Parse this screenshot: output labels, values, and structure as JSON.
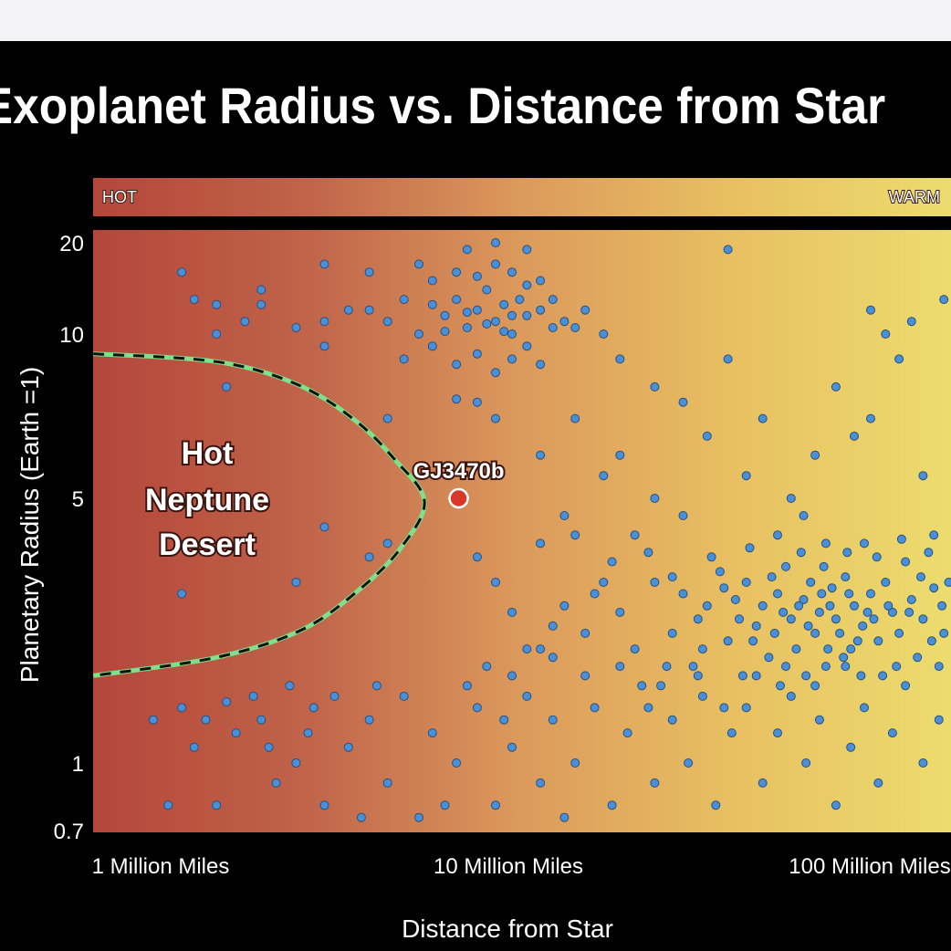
{
  "chart_data": {
    "type": "scatter",
    "title": "Exoplanet Radius vs. Distance from Star",
    "xlabel": "Distance from Star",
    "ylabel": "Planetary Radius (Earth =1)",
    "x_scale": "log",
    "y_scale": "log",
    "x_unit": "million miles",
    "xlim": [
      0.68,
      166
    ],
    "ylim": [
      0.7,
      20
    ],
    "x_ticks": [
      {
        "value": 1,
        "label": "1 Million Miles"
      },
      {
        "value": 10,
        "label": "10 Million Miles"
      },
      {
        "value": 100,
        "label": "100 Million Miles"
      }
    ],
    "y_ticks": [
      {
        "value": 20,
        "label": "20"
      },
      {
        "value": 10,
        "label": "10"
      },
      {
        "value": 5,
        "label": "5"
      },
      {
        "value": 1,
        "label": "1"
      },
      {
        "value": 0.7,
        "label": "0.7"
      }
    ],
    "temperature_band": {
      "left_label": "HOT",
      "right_label": "WARM"
    },
    "colors": {
      "hot": "#b4463a",
      "mid": "#d9955a",
      "warm": "#ecdc6e",
      "point": "#4a90d9",
      "point_stroke": "#24507e",
      "highlight": "#d8382a",
      "desert_line": "#7ee08a"
    },
    "desert_region": {
      "label_lines": [
        "Hot",
        "Neptune",
        "Desert"
      ],
      "boundary": [
        [
          0.68,
          9.2
        ],
        [
          1.5,
          8.9
        ],
        [
          2.5,
          8.1
        ],
        [
          3.6,
          7.0
        ],
        [
          4.7,
          5.9
        ],
        [
          5.7,
          4.9
        ],
        [
          4.9,
          3.7
        ],
        [
          3.8,
          2.9
        ],
        [
          2.6,
          2.25
        ],
        [
          1.5,
          1.9
        ],
        [
          0.68,
          1.7
        ]
      ]
    },
    "highlight": {
      "name": "GJ3470b",
      "x": 7.1,
      "y": 5.0
    },
    "points": [
      [
        4,
        12
      ],
      [
        4.5,
        11
      ],
      [
        5,
        13
      ],
      [
        5.5,
        10
      ],
      [
        6,
        12.5
      ],
      [
        6.5,
        11.5
      ],
      [
        7,
        13
      ],
      [
        7.5,
        10.5
      ],
      [
        8,
        12
      ],
      [
        8.5,
        14
      ],
      [
        9,
        11
      ],
      [
        9.5,
        12.5
      ],
      [
        10,
        10
      ],
      [
        10.5,
        13
      ],
      [
        11,
        11.5
      ],
      [
        12,
        12
      ],
      [
        13,
        10.5
      ],
      [
        14,
        11
      ],
      [
        5,
        9
      ],
      [
        6,
        9.5
      ],
      [
        7,
        8.8
      ],
      [
        8,
        9.2
      ],
      [
        9,
        8.5
      ],
      [
        10,
        9
      ],
      [
        11,
        9.5
      ],
      [
        12,
        8.8
      ],
      [
        6,
        15
      ],
      [
        7,
        16
      ],
      [
        8,
        15.5
      ],
      [
        9,
        17
      ],
      [
        10,
        16
      ],
      [
        11,
        14.5
      ],
      [
        12,
        15
      ],
      [
        3,
        11
      ],
      [
        3.5,
        12
      ],
      [
        2.5,
        10.5
      ],
      [
        3,
        9.5
      ],
      [
        16,
        12
      ],
      [
        18,
        10
      ],
      [
        20,
        9
      ],
      [
        2,
        12.5
      ],
      [
        1.8,
        11
      ],
      [
        4,
        16
      ],
      [
        5.5,
        17
      ],
      [
        7.5,
        19
      ],
      [
        9,
        20
      ],
      [
        11,
        19
      ],
      [
        3,
        17
      ],
      [
        2,
        14
      ],
      [
        1.5,
        10
      ],
      [
        8,
        7.5
      ],
      [
        9,
        7
      ],
      [
        7,
        7.6
      ],
      [
        13,
        13
      ],
      [
        15,
        10.5
      ],
      [
        10,
        11.5
      ],
      [
        9.5,
        10.2
      ],
      [
        8.5,
        10.8
      ],
      [
        7.5,
        11.8
      ],
      [
        6.5,
        10.2
      ],
      [
        15,
        7
      ],
      [
        20,
        6
      ],
      [
        25,
        8
      ],
      [
        30,
        7.5
      ],
      [
        35,
        6.5
      ],
      [
        40,
        9
      ],
      [
        50,
        7
      ],
      [
        60,
        5
      ],
      [
        70,
        6
      ],
      [
        80,
        8
      ],
      [
        90,
        6.5
      ],
      [
        100,
        7
      ],
      [
        120,
        9
      ],
      [
        140,
        5.5
      ],
      [
        25,
        5
      ],
      [
        30,
        4.5
      ],
      [
        45,
        5.5
      ],
      [
        55,
        4
      ],
      [
        65,
        4.5
      ],
      [
        75,
        3.8
      ],
      [
        18,
        5.5
      ],
      [
        22,
        4
      ],
      [
        12,
        6
      ],
      [
        14,
        4.5
      ],
      [
        100,
        12
      ],
      [
        110,
        10
      ],
      [
        130,
        11
      ],
      [
        160,
        13
      ],
      [
        150,
        4
      ],
      [
        40,
        19
      ],
      [
        20,
        2.5
      ],
      [
        22,
        2
      ],
      [
        25,
        3
      ],
      [
        28,
        2.2
      ],
      [
        30,
        2.8
      ],
      [
        32,
        1.8
      ],
      [
        35,
        2.6
      ],
      [
        38,
        3.2
      ],
      [
        40,
        2.1
      ],
      [
        42,
        2.7
      ],
      [
        45,
        3
      ],
      [
        48,
        2.3
      ],
      [
        50,
        2.6
      ],
      [
        52,
        1.9
      ],
      [
        55,
        2.8
      ],
      [
        58,
        3.3
      ],
      [
        60,
        2.4
      ],
      [
        62,
        2
      ],
      [
        65,
        2.7
      ],
      [
        68,
        3
      ],
      [
        70,
        2.2
      ],
      [
        72,
        2.5
      ],
      [
        75,
        1.8
      ],
      [
        78,
        2.9
      ],
      [
        80,
        2.4
      ],
      [
        85,
        3.1
      ],
      [
        88,
        2
      ],
      [
        90,
        2.6
      ],
      [
        95,
        2.3
      ],
      [
        100,
        2.8
      ],
      [
        105,
        2.1
      ],
      [
        110,
        3
      ],
      [
        115,
        2.5
      ],
      [
        120,
        2.2
      ],
      [
        125,
        3.4
      ],
      [
        130,
        2.7
      ],
      [
        140,
        2.4
      ],
      [
        150,
        2.9
      ],
      [
        160,
        2.2
      ],
      [
        18,
        3
      ],
      [
        16,
        2.2
      ],
      [
        14,
        2.6
      ],
      [
        12,
        2
      ],
      [
        24,
        3.6
      ],
      [
        26,
        1.6
      ],
      [
        34,
        2
      ],
      [
        36,
        3.5
      ],
      [
        44,
        1.7
      ],
      [
        46,
        3.7
      ],
      [
        54,
        2.2
      ],
      [
        56,
        1.6
      ],
      [
        64,
        3.6
      ],
      [
        66,
        1.7
      ],
      [
        74,
        3.3
      ],
      [
        76,
        2
      ],
      [
        84,
        1.9
      ],
      [
        86,
        3.6
      ],
      [
        94,
        1.7
      ],
      [
        96,
        3.8
      ],
      [
        104,
        3.5
      ],
      [
        108,
        1.7
      ],
      [
        118,
        1.8
      ],
      [
        122,
        3.9
      ],
      [
        135,
        1.9
      ],
      [
        145,
        3.6
      ],
      [
        155,
        1.8
      ],
      [
        165,
        3
      ],
      [
        28,
        3.1
      ],
      [
        33,
        2.4
      ],
      [
        39,
        2.9
      ],
      [
        43,
        2.4
      ],
      [
        47,
        2.1
      ],
      [
        53,
        3.1
      ],
      [
        57,
        2.5
      ],
      [
        63,
        2.6
      ],
      [
        67,
        2.3
      ],
      [
        73,
        2.8
      ],
      [
        77,
        2.6
      ],
      [
        82,
        2.2
      ],
      [
        87,
        2.8
      ],
      [
        92,
        2.1
      ],
      [
        98,
        2.5
      ],
      [
        102,
        2.4
      ],
      [
        112,
        2.6
      ],
      [
        128,
        2.5
      ],
      [
        138,
        3.1
      ],
      [
        148,
        2.1
      ],
      [
        158,
        2.6
      ],
      [
        1,
        1.3
      ],
      [
        1.1,
        0.8
      ],
      [
        1.3,
        1.1
      ],
      [
        1.5,
        0.8
      ],
      [
        1.7,
        1.2
      ],
      [
        2,
        1.3
      ],
      [
        2.2,
        0.9
      ],
      [
        2.5,
        1
      ],
      [
        2.8,
        1.4
      ],
      [
        3,
        0.8
      ],
      [
        3.5,
        1.1
      ],
      [
        4,
        1.3
      ],
      [
        4.5,
        0.9
      ],
      [
        5,
        1.5
      ],
      [
        5.5,
        0.75
      ],
      [
        6,
        1.2
      ],
      [
        7,
        1
      ],
      [
        8,
        1.4
      ],
      [
        9,
        0.8
      ],
      [
        10,
        1.1
      ],
      [
        11,
        1.5
      ],
      [
        12,
        0.9
      ],
      [
        13,
        1.3
      ],
      [
        15,
        1
      ],
      [
        17,
        1.4
      ],
      [
        19,
        0.8
      ],
      [
        21,
        1.2
      ],
      [
        23,
        1.6
      ],
      [
        25,
        0.9
      ],
      [
        28,
        1.3
      ],
      [
        31,
        1
      ],
      [
        34,
        1.5
      ],
      [
        37,
        0.8
      ],
      [
        41,
        1.2
      ],
      [
        45,
        1.4
      ],
      [
        50,
        0.9
      ],
      [
        55,
        1.2
      ],
      [
        60,
        1.5
      ],
      [
        66,
        1
      ],
      [
        72,
        1.3
      ],
      [
        80,
        0.8
      ],
      [
        88,
        1.1
      ],
      [
        96,
        1.4
      ],
      [
        105,
        0.9
      ],
      [
        115,
        1.2
      ],
      [
        125,
        1.6
      ],
      [
        140,
        1
      ],
      [
        155,
        1.3
      ],
      [
        1.2,
        1.4
      ],
      [
        1.4,
        1.3
      ],
      [
        1.9,
        1.5
      ],
      [
        2.4,
        1.6
      ],
      [
        3.2,
        1.5
      ],
      [
        3.8,
        0.75
      ],
      [
        6.5,
        0.8
      ],
      [
        7.5,
        1.6
      ],
      [
        9.5,
        1.3
      ],
      [
        14,
        0.75
      ],
      [
        16,
        1.7
      ],
      [
        20,
        1.8
      ],
      [
        24,
        1.4
      ],
      [
        27,
        1.8
      ],
      [
        33,
        1.7
      ],
      [
        39,
        1.4
      ],
      [
        48,
        1.7
      ],
      [
        58,
        1.8
      ],
      [
        70,
        1.6
      ],
      [
        85,
        1.8
      ],
      [
        1.6,
        1.45
      ],
      [
        2.1,
        1.1
      ],
      [
        2.7,
        1.2
      ],
      [
        4.2,
        1.6
      ],
      [
        8.5,
        1.8
      ],
      [
        11,
        2
      ],
      [
        13,
        2.3
      ],
      [
        10,
        2.5
      ],
      [
        9,
        3
      ],
      [
        8,
        3.5
      ],
      [
        12,
        3.8
      ],
      [
        15,
        4
      ],
      [
        13,
        1.9
      ],
      [
        17,
        2.8
      ],
      [
        19,
        3.4
      ],
      [
        10,
        1.7
      ],
      [
        1.2,
        2.8
      ],
      [
        3,
        4.2
      ],
      [
        4,
        3.5
      ],
      [
        4.5,
        3.8
      ],
      [
        2.5,
        3
      ],
      [
        4.5,
        7
      ],
      [
        1.3,
        13
      ],
      [
        1.5,
        12.5
      ],
      [
        1.2,
        16
      ],
      [
        1.6,
        8
      ]
    ]
  }
}
